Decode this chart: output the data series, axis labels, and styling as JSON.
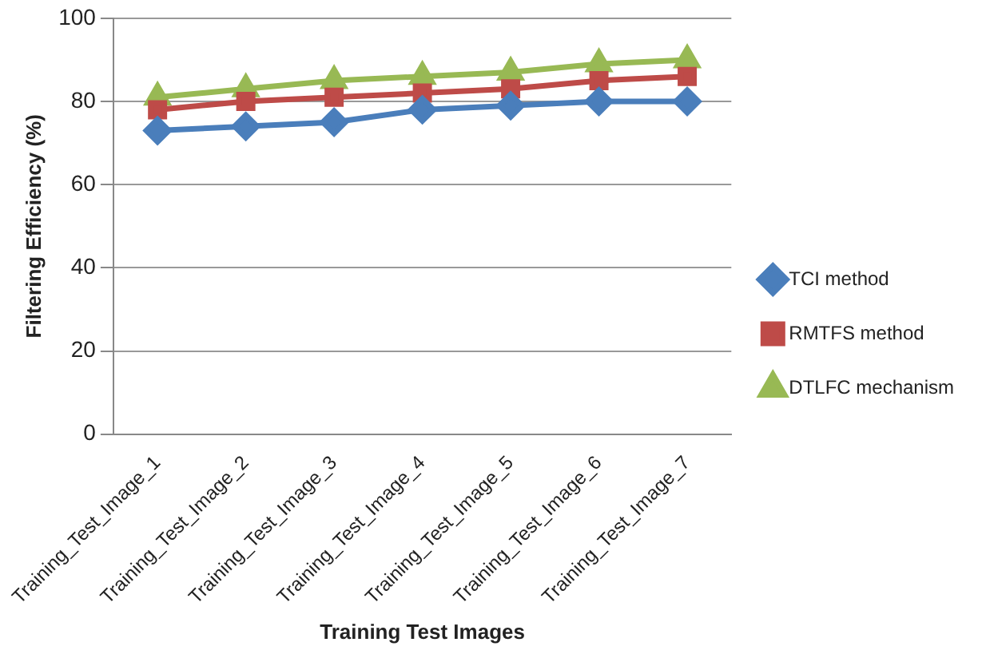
{
  "chart_data": {
    "type": "line",
    "xlabel": "Training Test Images",
    "ylabel": "Filtering Efficiency (%)",
    "categories": [
      "Training_Test_Image_1",
      "Training_Test_Image_2",
      "Training_Test_Image_3",
      "Training_Test_Image_4",
      "Training_Test_Image_5",
      "Training_Test_Image_6",
      "Training_Test_Image_7"
    ],
    "series": [
      {
        "name": "TCI method",
        "color": "#4a7ebb",
        "marker": "diamond",
        "values": [
          73,
          74,
          75,
          78,
          79,
          80,
          80
        ]
      },
      {
        "name": "RMTFS method",
        "color": "#be4b48",
        "marker": "square",
        "values": [
          78,
          80,
          81,
          82,
          83,
          85,
          86
        ]
      },
      {
        "name": "DTLFC mechanism",
        "color": "#98b954",
        "marker": "triangle",
        "values": [
          81,
          83,
          85,
          86,
          87,
          89,
          90
        ]
      }
    ],
    "ylim": [
      0,
      100
    ],
    "yticks": [
      0,
      20,
      40,
      60,
      80,
      100
    ],
    "grid": "y",
    "legend": "right"
  }
}
